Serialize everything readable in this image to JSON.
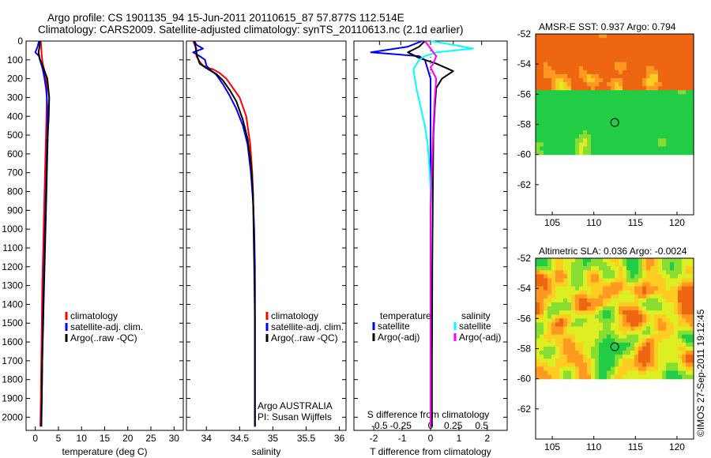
{
  "title_line1": "Argo profile: CS 1901135_94 15-Jun-2011 20110615_87 57.877S 112.514E",
  "title_line2": "Climatology: CARS2009. Satellite-adjusted climatology: synTS_20110613.nc (2.1d earlier)",
  "footer": "©IMOS 27-Sep-2011 19:12:45",
  "colors": {
    "climatology": "#ff0000",
    "satellite": "#0000ff",
    "argo": "#000000",
    "satellite_s": "#00ffff",
    "argo_s": "#ff00ff",
    "map_blank": "#ffffff"
  },
  "chart_data": [
    {
      "type": "line",
      "id": "temperature",
      "xlabel": "temperature (deg C)",
      "xlim": [
        -2,
        32
      ],
      "ylim": [
        2070,
        0
      ],
      "xticks": [
        0,
        5,
        10,
        15,
        20,
        25,
        30
      ],
      "xtick_labels": [
        "0",
        "5",
        "10",
        "15",
        "20",
        "25",
        "30"
      ],
      "yticks": [
        0,
        100,
        200,
        300,
        400,
        500,
        600,
        700,
        800,
        900,
        1000,
        1100,
        1200,
        1300,
        1400,
        1500,
        1600,
        1700,
        1800,
        1900,
        2000
      ],
      "ytick_labels": [
        "0",
        "100",
        "200",
        "300",
        "400",
        "500",
        "600",
        "700",
        "800",
        "900",
        "1000",
        "1100",
        "1200",
        "1300",
        "1400",
        "1500",
        "1600",
        "1700",
        "1800",
        "1900",
        "2000"
      ],
      "legend": {
        "placement": "lower-right",
        "entries": [
          "climatology",
          "satellite-adj. clim.",
          "Argo(..raw -QC)"
        ]
      },
      "series": [
        {
          "name": "climatology",
          "color": "#ff0000",
          "width": 2,
          "x": [
            1.2,
            1.3,
            1.4,
            1.6,
            2.0,
            2.3,
            2.5,
            2.5,
            2.4,
            2.3,
            2.2,
            2.1,
            2.0,
            1.9,
            1.8,
            1.7,
            1.6,
            1.5,
            1.45,
            1.4,
            1.35,
            1.3,
            1.25,
            1.2,
            1.1
          ],
          "y": [
            0,
            40,
            80,
            120,
            160,
            200,
            250,
            300,
            400,
            500,
            600,
            700,
            800,
            900,
            1000,
            1100,
            1200,
            1300,
            1400,
            1500,
            1600,
            1700,
            1800,
            1900,
            2050
          ]
        },
        {
          "name": "satellite-adj. clim.",
          "color": "#0000ff",
          "width": 2,
          "x": [
            0.8,
            0.5,
            0.0,
            0.8,
            1.0,
            1.6,
            2.0,
            2.3,
            2.5,
            2.6,
            2.6,
            2.6,
            2.5,
            2.4,
            2.3,
            2.2,
            2.1,
            2.0,
            1.9,
            1.8,
            1.7,
            1.6,
            1.55,
            1.5,
            1.45,
            1.4,
            1.35,
            1.3,
            1.3
          ],
          "y": [
            0,
            30,
            60,
            80,
            100,
            150,
            200,
            250,
            300,
            350,
            400,
            500,
            600,
            700,
            800,
            900,
            1000,
            1100,
            1200,
            1300,
            1400,
            1500,
            1600,
            1700,
            1800,
            1900,
            1950,
            2000,
            2050
          ]
        },
        {
          "name": "Argo(..raw -QC)",
          "color": "#000000",
          "width": 2,
          "x": [
            1.0,
            0.9,
            0.7,
            0.9,
            1.4,
            2.0,
            2.6,
            2.8,
            3.0,
            2.9,
            2.7,
            2.6,
            2.5,
            2.4,
            2.3,
            2.2,
            2.1,
            2.0,
            1.9,
            1.8,
            1.7,
            1.6,
            1.5,
            1.45,
            1.4,
            1.35,
            1.3
          ],
          "y": [
            0,
            30,
            60,
            90,
            120,
            160,
            200,
            250,
            300,
            400,
            500,
            600,
            700,
            800,
            900,
            1000,
            1100,
            1200,
            1300,
            1400,
            1500,
            1600,
            1700,
            1800,
            1900,
            2000,
            2050
          ]
        }
      ]
    },
    {
      "type": "line",
      "id": "salinity",
      "xlabel": "salinity",
      "xlim": [
        33.7,
        36.1
      ],
      "ylim": [
        2070,
        0
      ],
      "xticks": [
        34,
        34.5,
        35,
        35.5,
        36
      ],
      "xtick_labels": [
        "34",
        "34.5",
        "35",
        "35.5",
        "36"
      ],
      "legend": {
        "placement": "lower-right",
        "entries": [
          "climatology",
          "satellite-adj. clim.",
          "Argo(..raw -QC)"
        ]
      },
      "annotations": [
        "Argo AUSTRALIA",
        "PI: Susan Wijffels"
      ],
      "series": [
        {
          "name": "climatology",
          "color": "#ff0000",
          "width": 2,
          "x": [
            33.8,
            33.85,
            33.85,
            33.9,
            33.95,
            34.0,
            34.1,
            34.2,
            34.3,
            34.4,
            34.5,
            34.6,
            34.66,
            34.69,
            34.71,
            34.72,
            34.73,
            34.73,
            34.73,
            34.73
          ],
          "y": [
            0,
            40,
            80,
            110,
            130,
            140,
            150,
            170,
            200,
            250,
            300,
            400,
            550,
            700,
            900,
            1100,
            1300,
            1500,
            1800,
            2050
          ]
        },
        {
          "name": "satellite-adj. clim.",
          "color": "#0000ff",
          "width": 2,
          "x": [
            33.82,
            33.85,
            33.95,
            33.8,
            33.9,
            33.98,
            34.0,
            34.05,
            34.15,
            34.25,
            34.35,
            34.45,
            34.55,
            34.62,
            34.67,
            34.7,
            34.72,
            34.73,
            34.73,
            34.73,
            34.73
          ],
          "y": [
            0,
            20,
            40,
            60,
            80,
            100,
            130,
            150,
            180,
            230,
            290,
            360,
            450,
            550,
            700,
            850,
            1000,
            1200,
            1500,
            1800,
            2050
          ]
        },
        {
          "name": "Argo(..raw -QC)",
          "color": "#000000",
          "width": 2,
          "x": [
            33.82,
            33.84,
            33.86,
            33.9,
            33.98,
            34.05,
            34.15,
            34.25,
            34.35,
            34.45,
            34.55,
            34.62,
            34.67,
            34.7,
            34.71,
            34.72,
            34.73,
            34.73,
            34.73
          ],
          "y": [
            0,
            40,
            80,
            120,
            140,
            155,
            175,
            210,
            260,
            320,
            420,
            520,
            650,
            800,
            1000,
            1200,
            1500,
            1800,
            2050
          ]
        }
      ]
    },
    {
      "type": "line",
      "id": "difference",
      "xlabel": "T difference from climatology",
      "top_xlabel": "S difference from climatology",
      "xlim": [
        -2.7,
        2.7
      ],
      "ylim": [
        2070,
        0
      ],
      "xticks": [
        -2,
        -1,
        0,
        1,
        2
      ],
      "xtick_labels": [
        "-2",
        "-1",
        "0",
        "1",
        "2"
      ],
      "top_xticks": [
        -1.8,
        -1.05,
        0.0,
        0.8,
        1.8
      ],
      "top_xtick_labels": [
        "-0.5",
        "-0.25",
        "0",
        "0.25",
        "0.5"
      ],
      "legend": {
        "placement": "lower-center",
        "headers": [
          "temperature",
          "salinity"
        ],
        "entries": [
          "satellite",
          "Argo(-adj)",
          "satellite",
          "Argo(-adj)"
        ]
      },
      "series": [
        {
          "name": "satellite",
          "group": "temperature",
          "color": "#0000ff",
          "width": 2,
          "x": [
            -0.3,
            -0.8,
            -2.1,
            -0.4,
            -0.2,
            -0.1,
            0.0,
            0.0,
            0.0,
            0.0,
            0.0,
            0.0,
            0.0,
            0.0
          ],
          "y": [
            0,
            30,
            60,
            80,
            100,
            150,
            200,
            300,
            500,
            800,
            1200,
            1600,
            1900,
            2050
          ]
        },
        {
          "name": "Argo(-adj)",
          "group": "temperature",
          "color": "#000000",
          "width": 2,
          "x": [
            -0.2,
            -0.4,
            -0.8,
            -0.4,
            0.2,
            0.8,
            0.4,
            0.2,
            0.15,
            0.1,
            0.08,
            0.06,
            0.05,
            0.05
          ],
          "y": [
            0,
            30,
            60,
            90,
            120,
            160,
            200,
            250,
            350,
            500,
            800,
            1200,
            1700,
            2050
          ]
        },
        {
          "name": "satellite",
          "group": "salinity",
          "color": "#00ffff",
          "width": 2,
          "x": [
            0.0,
            0.8,
            1.5,
            0.2,
            -0.2,
            -0.4,
            -0.6,
            -0.5,
            -0.35,
            -0.2,
            -0.1,
            -0.05,
            0.0,
            0.0,
            0.0,
            0.0
          ],
          "y": [
            0,
            20,
            40,
            60,
            80,
            100,
            150,
            250,
            350,
            450,
            550,
            650,
            800,
            1200,
            1600,
            2050
          ]
        },
        {
          "name": "Argo(-adj)",
          "group": "salinity",
          "color": "#ff00ff",
          "width": 2,
          "x": [
            -0.2,
            0.0,
            0.2,
            0.1,
            0.0,
            0.1,
            0.2,
            0.15,
            0.1,
            0.05,
            0.0,
            0.0,
            0.0,
            0.0
          ],
          "y": [
            0,
            40,
            80,
            120,
            140,
            170,
            200,
            300,
            450,
            650,
            900,
            1300,
            1700,
            2050
          ]
        }
      ]
    },
    {
      "type": "heatmap",
      "id": "sst-map",
      "title": "AMSR-E SST: 0.937 Argo: 0.794",
      "xlim": [
        103,
        122
      ],
      "ylim": [
        -64,
        -52
      ],
      "xticks": [
        105,
        110,
        115,
        120
      ],
      "xtick_labels": [
        "105",
        "110",
        "115",
        "120"
      ],
      "yticks": [
        -52,
        -54,
        -56,
        -58,
        -60,
        -62
      ],
      "ytick_labels": [
        "-52",
        "-54",
        "-56",
        "-58",
        "-60",
        "-62"
      ],
      "data_extent_lat": [
        -60,
        -52
      ],
      "profile_location": {
        "lon": 112.514,
        "lat": -57.877
      }
    },
    {
      "type": "heatmap",
      "id": "sla-map",
      "title": "Altimetric SLA: 0.036 Argo: -0.0024",
      "xlim": [
        103,
        122
      ],
      "ylim": [
        -64,
        -52
      ],
      "xticks": [
        105,
        110,
        115,
        120
      ],
      "xtick_labels": [
        "105",
        "110",
        "115",
        "120"
      ],
      "yticks": [
        -52,
        -54,
        -56,
        -58,
        -60,
        -62
      ],
      "ytick_labels": [
        "-52",
        "-54",
        "-56",
        "-58",
        "-60",
        "-62"
      ],
      "data_extent_lat": [
        -60,
        -52
      ],
      "profile_location": {
        "lon": 112.514,
        "lat": -57.877
      }
    }
  ]
}
